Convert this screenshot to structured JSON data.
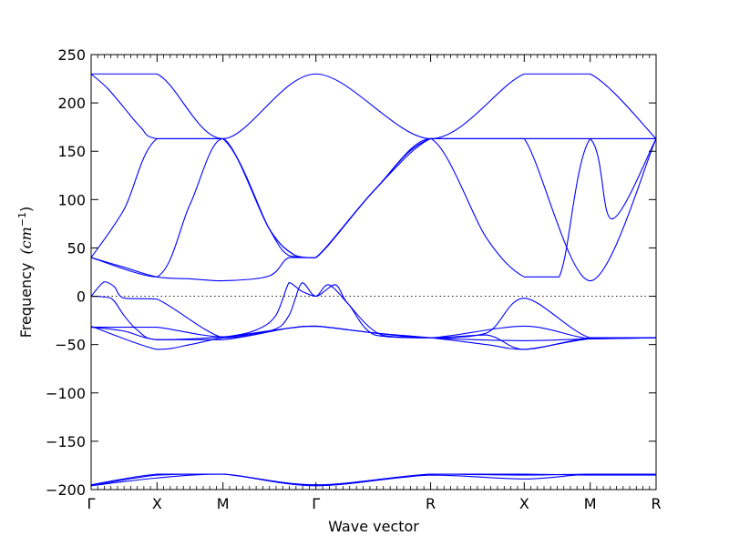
{
  "chart_data": {
    "type": "line",
    "xlabel": "Wave vector",
    "ylabel": "Frequency (cm⁻¹)",
    "ylabel_main": "Frequency",
    "ylabel_unit": "(cm",
    "ylabel_exp": "−1",
    "ylabel_close": ")",
    "ylim": [
      -200,
      250
    ],
    "yticks": [
      -200,
      -150,
      -100,
      -50,
      0,
      50,
      100,
      150,
      200,
      250
    ],
    "grid": false,
    "zero_reference_line": true,
    "band_color": "#0000ff",
    "k_path": [
      "Γ",
      "X",
      "M",
      "Γ",
      "R",
      "X",
      "M",
      "R"
    ],
    "k_positions": [
      0,
      1,
      2,
      3.41,
      5.15,
      6.57,
      7.57,
      8.57
    ],
    "minor_ticks_per_segment": [
      10,
      10,
      14,
      17,
      14,
      10,
      10
    ],
    "series": [
      {
        "x": [
          0,
          1,
          2,
          3.41,
          5.15,
          6.57,
          7.57,
          8.57
        ],
        "values": [
          230,
          230,
          163,
          230,
          163,
          230,
          230,
          163
        ]
      },
      {
        "x": [
          0,
          0.25,
          0.5,
          0.75,
          1,
          2,
          2.7,
          3.1,
          3.41,
          4.3,
          5.15,
          6.0,
          6.57,
          7.1,
          7.57,
          8.57
        ],
        "values": [
          230,
          215,
          195,
          175,
          163,
          163,
          70,
          42,
          40,
          110,
          163,
          60,
          20,
          20,
          163,
          163
        ]
      },
      {
        "x": [
          0,
          1,
          1.5,
          2,
          2.7,
          3.1,
          3.41,
          4.3,
          5.15,
          6.57,
          7.57,
          7.9,
          8.57
        ],
        "values": [
          40,
          20,
          95,
          163,
          70,
          42,
          40,
          110,
          163,
          163,
          163,
          80,
          163
        ]
      },
      {
        "x": [
          0,
          0.5,
          1,
          2,
          2.7,
          3.0,
          3.41,
          4.3,
          5.15,
          6.0,
          6.57,
          7.57,
          8.57
        ],
        "values": [
          40,
          90,
          163,
          163,
          70,
          42,
          40,
          110,
          163,
          163,
          163,
          16,
          163
        ]
      },
      {
        "x": [
          0,
          0.5,
          1,
          1.5,
          2,
          2.7,
          3.0,
          3.41,
          4.3,
          5.15,
          6.57,
          7.57,
          8.57
        ],
        "values": [
          40,
          30,
          20,
          18,
          16,
          21,
          40,
          40,
          110,
          163,
          163,
          163,
          163
        ]
      },
      {
        "x": [
          0,
          0.2,
          0.35,
          0.5,
          1,
          2,
          2.75,
          3.0,
          3.2,
          3.41,
          3.7,
          3.9,
          4.4,
          5.15,
          6.0,
          6.57,
          7.57,
          8.57
        ],
        "values": [
          0,
          15,
          10,
          -2,
          -3,
          -43,
          -35,
          -20,
          14,
          0,
          12,
          -8,
          -40,
          -43,
          -38,
          -2,
          -43,
          -43
        ]
      },
      {
        "x": [
          0,
          0.3,
          0.5,
          0.7,
          1,
          2,
          2.5,
          2.8,
          3.0,
          3.1,
          3.2,
          3.41,
          3.6,
          3.9,
          4.3,
          5.15,
          6.0,
          6.57,
          7.57,
          8.57
        ],
        "values": [
          0,
          -2,
          -20,
          -35,
          -45,
          -42,
          -35,
          -20,
          14,
          10,
          5,
          0,
          12,
          -8,
          -40,
          -43,
          -40,
          -55,
          -43,
          -43
        ]
      },
      {
        "x": [
          0,
          0.5,
          1,
          2,
          3,
          3.41,
          4.3,
          5.15,
          6.0,
          6.57,
          7.57,
          8.57
        ],
        "values": [
          -32,
          -36,
          -45,
          -45,
          -33,
          -31,
          -38,
          -43,
          -50,
          -55,
          -44,
          -43
        ]
      },
      {
        "x": [
          0,
          0.5,
          1,
          2,
          3,
          3.41,
          4.3,
          5.15,
          6.57,
          7.57,
          8.57
        ],
        "values": [
          -32,
          -32,
          -32,
          -42,
          -33,
          -31,
          -38,
          -43,
          -46,
          -44,
          -43
        ]
      },
      {
        "x": [
          0,
          1,
          1.5,
          2,
          3,
          3.41,
          4.3,
          5.15,
          6.57,
          7.57,
          8.57
        ],
        "values": [
          -31,
          -55,
          -50,
          -43,
          -33,
          -31,
          -38,
          -43,
          -31,
          -44,
          -43
        ]
      },
      {
        "x": [
          0,
          1,
          2,
          3.41,
          5.15,
          6.57,
          7.57,
          8.57
        ],
        "values": [
          -196,
          -188,
          -184,
          -196,
          -184,
          -184,
          -185,
          -185
        ]
      },
      {
        "x": [
          0,
          1,
          2,
          3.41,
          5.15,
          6.57,
          7.57,
          8.57
        ],
        "values": [
          -196,
          -185,
          -184,
          -196,
          -185,
          -189,
          -184,
          -184
        ]
      },
      {
        "x": [
          0,
          1,
          2,
          3.41,
          5.15,
          6.57,
          7.57,
          8.57
        ],
        "values": [
          -195,
          -184,
          -184,
          -195,
          -184,
          -185,
          -184,
          -184
        ]
      }
    ]
  }
}
